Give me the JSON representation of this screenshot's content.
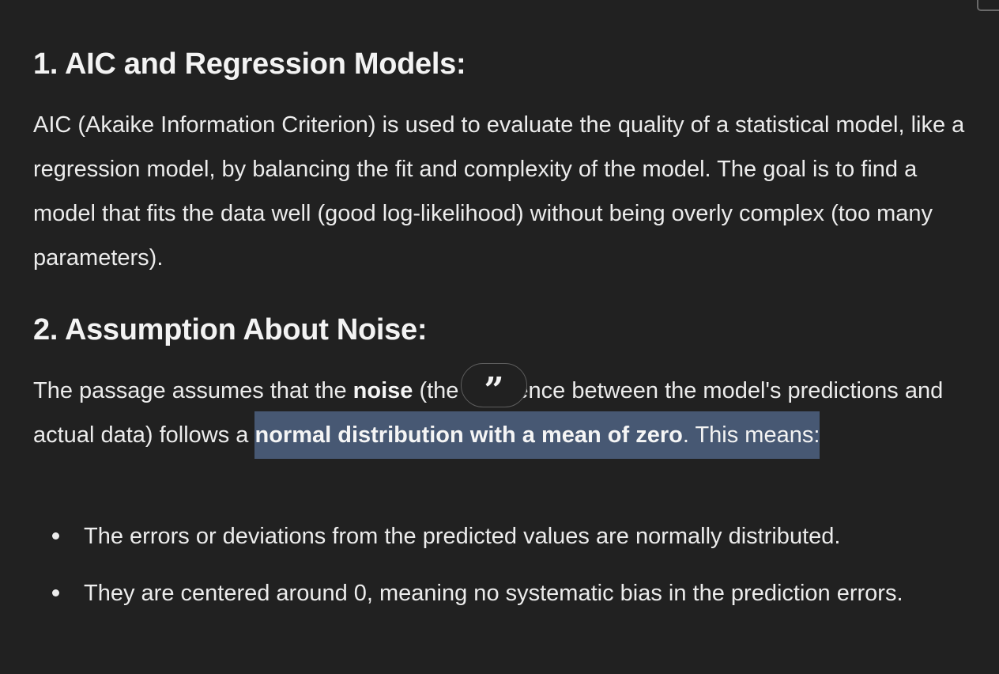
{
  "section1": {
    "heading": "1. AIC and Regression Models:",
    "paragraph": "AIC (Akaike Information Criterion) is used to evaluate the quality of a statistical model, like a regression model, by balancing the fit and complexity of the model. The goal is to find a model that fits the data well (good log-likelihood) without being overly complex (too many parameters)."
  },
  "section2": {
    "heading": "2. Assumption About Noise:",
    "paragraph_start": "The passage assumes that the ",
    "noise_bold": "noise",
    "paragraph_mid": " (the difference between the model's predictions and actual data) follows a ",
    "selected_bold": "normal distribution with a mean of zero",
    "selected_tail": ". This means:",
    "bullets": [
      "The errors or deviations from the predicted values are normally distributed.",
      "They are centered around 0, meaning no systematic bias in the prediction errors."
    ]
  },
  "quote_button": {
    "glyph": "”",
    "icon": "quote-icon"
  }
}
